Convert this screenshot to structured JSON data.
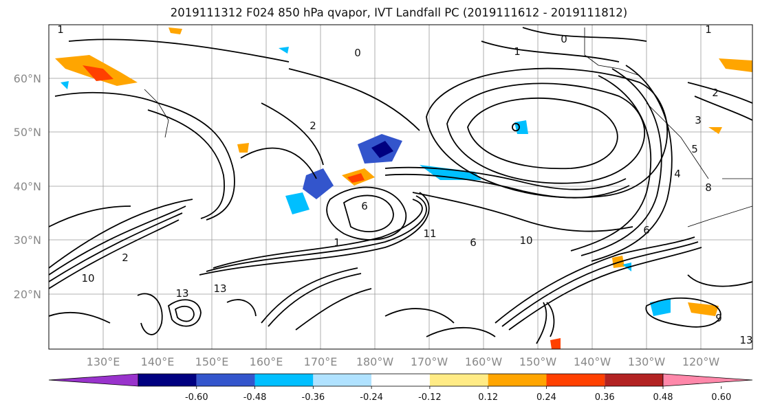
{
  "title": "2019111312 F024 850 hPa qvapor, IVT Landfall PC (2019111612 - 2019111812)",
  "lat_labels": [
    "60°N",
    "50°N",
    "40°N",
    "30°N",
    "20°N"
  ],
  "lon_labels": [
    "130°E",
    "140°E",
    "150°E",
    "160°E",
    "170°E",
    "180°W",
    "170°W",
    "160°W",
    "150°W",
    "140°W",
    "130°W",
    "120°W"
  ],
  "colorbar": {
    "colors": [
      "#9933cc",
      "#000080",
      "#3355cc",
      "#00bfff",
      "#b0e2ff",
      "#ffffff",
      "#ffeb85",
      "#ffa500",
      "#ff4000",
      "#b22222",
      "#ff88aa"
    ],
    "tick_labels": [
      "-0.60",
      "-0.48",
      "-0.36",
      "-0.24",
      "-0.12",
      "0.12",
      "0.24",
      "0.36",
      "0.48",
      "0.60"
    ]
  },
  "contour_labels": [
    "1",
    "0",
    "1",
    "2",
    "3",
    "5",
    "6",
    "10",
    "13",
    "6",
    "11",
    "1",
    "0",
    "1",
    "2",
    "10",
    "13",
    "4",
    "6",
    "9",
    "13",
    "2",
    "8"
  ]
}
